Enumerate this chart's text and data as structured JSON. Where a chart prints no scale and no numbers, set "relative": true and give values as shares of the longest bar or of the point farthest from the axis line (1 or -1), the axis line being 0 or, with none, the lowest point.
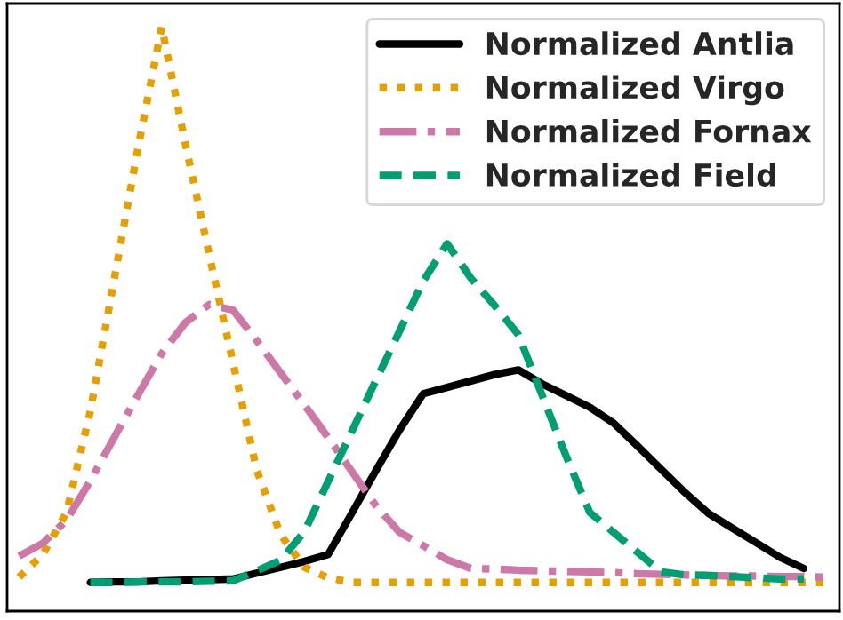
{
  "chart_data": {
    "type": "line",
    "relative": true,
    "categories": [
      null,
      null,
      null,
      null,
      null,
      null,
      null,
      null,
      null,
      null,
      null,
      null,
      null,
      null,
      null,
      null,
      null,
      null,
      null,
      null,
      null,
      null,
      null,
      null,
      null,
      null,
      null,
      null,
      null,
      null,
      null,
      null,
      null,
      null,
      null
    ],
    "legend": "top right",
    "grid": false,
    "marker": "none",
    "series": [
      {
        "name": "Normalized Antlia",
        "color": "#000000",
        "line_style": "solid",
        "values": [
          null,
          null,
          null,
          0.049,
          0.05,
          0.05,
          0.052,
          0.053,
          0.054,
          0.055,
          0.065,
          0.075,
          0.085,
          0.097,
          0.168,
          0.24,
          0.31,
          0.372,
          0.383,
          0.394,
          0.405,
          0.413,
          0.389,
          0.369,
          0.349,
          0.322,
          0.283,
          0.243,
          0.203,
          0.167,
          0.142,
          0.117,
          0.092,
          0.073,
          null
        ]
      },
      {
        "name": "Normalized Virgo",
        "color": "#e69f00",
        "line_style": "dotted",
        "values": [
          0.058,
          0.097,
          0.169,
          0.342,
          0.567,
          0.792,
          1.0,
          0.799,
          0.61,
          0.425,
          0.241,
          0.131,
          0.075,
          0.057,
          0.049,
          0.049,
          0.049,
          0.049,
          0.049,
          0.049,
          0.049,
          0.049,
          0.049,
          0.049,
          0.049,
          0.049,
          0.049,
          0.049,
          0.049,
          0.049,
          0.049,
          0.049,
          0.049,
          0.049,
          0.049
        ]
      },
      {
        "name": "Normalized Fornax",
        "color": "#cc79a7",
        "line_style": "dashdot",
        "values": [
          0.094,
          0.116,
          0.156,
          0.223,
          0.297,
          0.37,
          0.441,
          0.494,
          0.525,
          0.515,
          0.463,
          0.408,
          0.353,
          0.297,
          0.239,
          0.181,
          0.135,
          0.112,
          0.088,
          0.073,
          0.072,
          0.07,
          0.069,
          0.068,
          0.067,
          0.066,
          0.064,
          0.063,
          0.062,
          0.061,
          0.06,
          0.06,
          0.059,
          0.059,
          0.058
        ]
      },
      {
        "name": "Normalized Field",
        "color": "#009e73",
        "line_style": "dashed",
        "values": [
          null,
          null,
          null,
          0.049,
          0.049,
          0.05,
          0.05,
          0.05,
          0.051,
          0.052,
          0.069,
          0.087,
          0.136,
          0.222,
          0.308,
          0.394,
          0.479,
          0.565,
          0.629,
          0.57,
          0.523,
          0.473,
          0.369,
          0.266,
          0.169,
          0.135,
          0.101,
          0.067,
          0.062,
          0.061,
          0.059,
          0.057,
          0.055,
          0.055,
          null
        ]
      }
    ]
  }
}
